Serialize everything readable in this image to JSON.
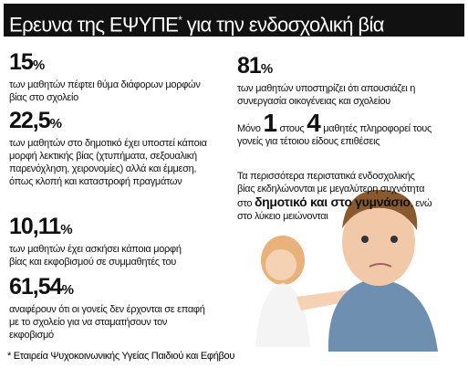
{
  "header": {
    "title": "Ερευνα της ΕΨΥΠΕ",
    "mark": "*",
    "rest": " για την ενδοσχολική βία"
  },
  "stats_left": [
    {
      "number": "15",
      "unit": "%",
      "text": "των μαθητών πέφτει θύμα διάφορων μορφών βίας στο σχολείο"
    },
    {
      "number": "22,5",
      "unit": "%",
      "text": "των μαθητών στο δημοτικό έχει υποστεί κάποια μορφή λεκτικής βίας (χτυπήματα, σεξουαλική παρενόχληση, χειρονομίες) αλλά και έμμεση, όπως κλοπή και καταστροφή πραγμάτων"
    },
    {
      "number": "10,11",
      "unit": "%",
      "text": "των μαθητών έχει ασκήσει κάποια μορφή βίας και εκφοβισμού σε συμμαθητές του"
    },
    {
      "number": "61,54",
      "unit": "%",
      "text": "αναφέρουν ότι οι γονείς δεν έρχονται σε επαφή με το σχολείο για να σταματήσουν τον εκφοβισμό"
    }
  ],
  "stat_right": {
    "number": "81",
    "unit": "%",
    "text": "των μαθητών υποστηρίζει ότι απουσιάζει η συνεργασία οικογένειας και σχολείου"
  },
  "ratio": {
    "pre": "Μόνο",
    "a": "1",
    "mid": "στους",
    "b": "4",
    "post": "μαθητές πληροφορεί τους γονείς για τέτοιου είδους επιθέσεις"
  },
  "note": {
    "text": "Τα περισσότερα περιστατικά ενδοσχολικής βίας εκδηλώνονται με μεγαλύτερη συχνότητα",
    "pre": "στο",
    "bold": "δημοτικό και στο γυμνάσιο",
    "post": ", ενώ στο λύκειο μειώνονται"
  },
  "footnote": "* Εταιρεία Ψυχοκοινωνικής Υγείας Παιδιού και Εφήβου"
}
